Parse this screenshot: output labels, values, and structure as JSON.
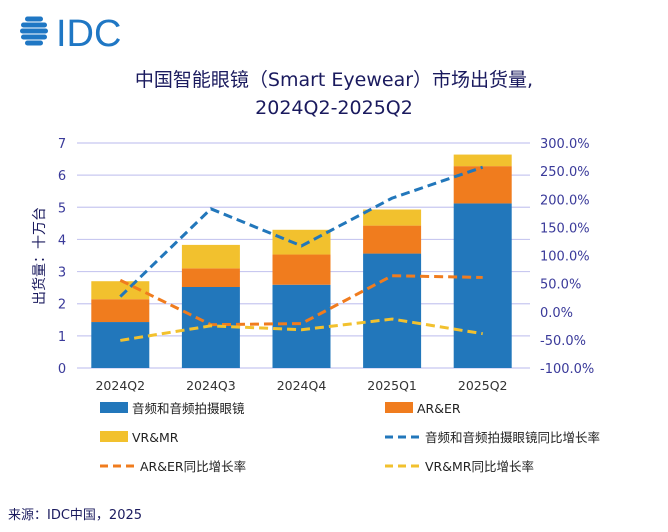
{
  "logo": {
    "text": "IDC",
    "color": "#1f77c4"
  },
  "chart_data": {
    "type": "bar",
    "stacked": true,
    "title": "中国智能眼镜（Smart Eyewear）市场出货量,",
    "subtitle": "2024Q2-2025Q2",
    "ylabel": "出货量：十万台",
    "ylim": [
      0,
      7
    ],
    "yticks": [
      "0",
      "1",
      "2",
      "3",
      "4",
      "5",
      "6",
      "7"
    ],
    "y2lim": [
      -100,
      300
    ],
    "y2ticks": [
      "-100.0%",
      "-50.0%",
      "0.0%",
      "50.0%",
      "100.0%",
      "150.0%",
      "200.0%",
      "250.0%",
      "300.0%"
    ],
    "grid": true,
    "legend_placement": "bottom",
    "categories": [
      "2024Q2",
      "2024Q3",
      "2024Q4",
      "2025Q1",
      "2025Q2"
    ],
    "series": [
      {
        "name": "音频和音频拍摄眼镜",
        "kind": "bar",
        "color": "#2277bb",
        "values": [
          1.43,
          2.52,
          2.59,
          3.56,
          5.12
        ]
      },
      {
        "name": "AR&ER",
        "kind": "bar",
        "color": "#f07c1e",
        "values": [
          0.71,
          0.58,
          0.94,
          0.87,
          1.16
        ]
      },
      {
        "name": "VR&MR",
        "kind": "bar",
        "color": "#f2c12e",
        "values": [
          0.56,
          0.73,
          0.77,
          0.5,
          0.36
        ]
      },
      {
        "name": "音频和音频拍摄眼镜同比增长率",
        "kind": "line",
        "axis": "right",
        "dashed": true,
        "color": "#2277bb",
        "values": [
          27,
          183,
          117,
          202,
          257
        ]
      },
      {
        "name": "AR&ER同比增长率",
        "kind": "line",
        "axis": "right",
        "dashed": true,
        "color": "#f07c1e",
        "values": [
          56,
          -23,
          -21,
          64,
          61
        ]
      },
      {
        "name": "VR&MR同比增长率",
        "kind": "line",
        "axis": "right",
        "dashed": true,
        "color": "#f2c12e",
        "values": [
          -51,
          -25,
          -32,
          -13,
          -39
        ]
      }
    ]
  },
  "source": "来源：IDC中国，2025"
}
